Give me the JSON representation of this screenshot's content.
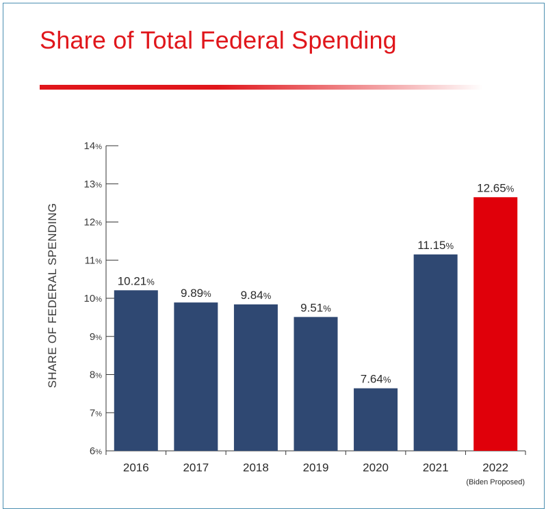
{
  "title": "Share of Total Federal Spending",
  "colors": {
    "title": "#e0161b",
    "bar": "#2f4872",
    "highlight": "#e0000a"
  },
  "chart_data": {
    "type": "bar",
    "title": "Share of Total Federal Spending",
    "ylabel": "SHARE OF FEDERAL SPENDING",
    "xlabel": "",
    "ylim": [
      6,
      14
    ],
    "yticks": [
      6,
      7,
      8,
      9,
      10,
      11,
      12,
      13,
      14
    ],
    "ytick_suffix": "%",
    "categories": [
      "2016",
      "2017",
      "2018",
      "2019",
      "2020",
      "2021",
      "2022"
    ],
    "category_notes": [
      "",
      "",
      "",
      "",
      "",
      "",
      "(Biden Proposed)"
    ],
    "values": [
      10.21,
      9.89,
      9.84,
      9.51,
      7.64,
      11.15,
      12.65
    ],
    "value_labels": [
      "10.21",
      "9.89",
      "9.84",
      "9.51",
      "7.64",
      "11.15",
      "12.65"
    ],
    "value_suffix": "%",
    "highlight_index": 6,
    "grid": false,
    "legend": "none"
  }
}
